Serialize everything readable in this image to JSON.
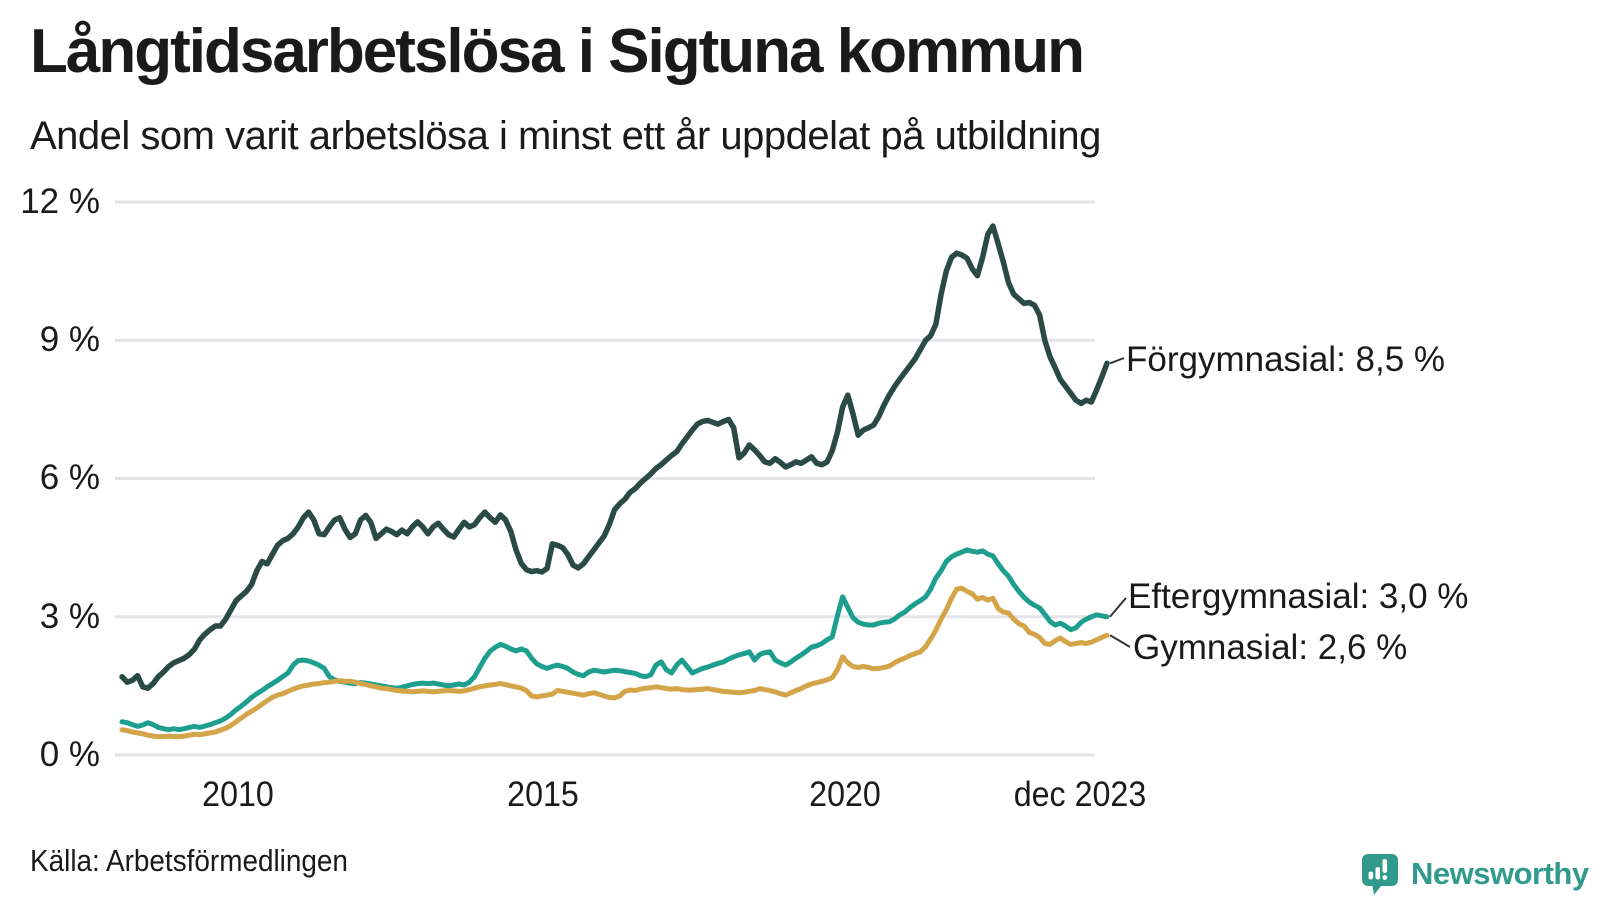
{
  "header": {
    "title": "Långtidsarbetslösa i Sigtuna kommun",
    "subtitle": "Andel som varit arbetslösa i minst ett år uppdelat på utbildning"
  },
  "footer": {
    "source": "Källa: Arbetsförmedlingen",
    "brand_name": "Newsworthy",
    "brand_color": "#319a8c",
    "brand_icon": "bar-chart-speech-bubble-icon"
  },
  "chart_data": {
    "type": "line",
    "title": "Långtidsarbetslösa i Sigtuna kommun",
    "subtitle": "Andel som varit arbetslösa i minst ett år uppdelat på utbildning",
    "unit": "%",
    "x_start": "2008",
    "x_end": "dec 2023",
    "points_per_year": 12,
    "ylim": [
      0,
      12
    ],
    "grid": "horizontal",
    "legend_position": "end-of-line-labels",
    "colors": {
      "grid": "#e4e4e8",
      "text": "#1a1a1a",
      "connector": "#333333"
    },
    "y_axis": {
      "ticks_top_to_bottom": [
        "12 %",
        "9 %",
        "6 %",
        "3 %",
        "0 %"
      ],
      "tick_values": [
        12,
        9,
        6,
        3,
        0
      ]
    },
    "x_axis": {
      "ticks": [
        {
          "label": "2010",
          "pos": 0.1178
        },
        {
          "label": "2015",
          "pos": 0.4274
        },
        {
          "label": "2020",
          "pos": 0.734
        },
        {
          "label": "dec 2023",
          "pos": 0.9726
        }
      ]
    },
    "series": [
      {
        "name": "Förgymnasial",
        "color": "#2a4b45",
        "end_value_label": "8,5 %",
        "end_label": "Förgymnasial: 8,5 %",
        "values": [
          1.7,
          1.58,
          1.62,
          1.72,
          1.48,
          1.45,
          1.55,
          1.7,
          1.8,
          1.92,
          2.0,
          2.05,
          2.1,
          2.18,
          2.3,
          2.5,
          2.62,
          2.72,
          2.8,
          2.8,
          2.95,
          3.15,
          3.35,
          3.45,
          3.55,
          3.7,
          4.0,
          4.2,
          4.15,
          4.35,
          4.55,
          4.65,
          4.7,
          4.8,
          4.95,
          5.15,
          5.27,
          5.1,
          4.8,
          4.78,
          4.95,
          5.1,
          5.15,
          4.9,
          4.72,
          4.8,
          5.1,
          5.2,
          5.05,
          4.7,
          4.8,
          4.9,
          4.85,
          4.78,
          4.88,
          4.8,
          4.95,
          5.06,
          4.95,
          4.8,
          4.95,
          5.03,
          4.9,
          4.78,
          4.73,
          4.9,
          5.05,
          4.95,
          5.0,
          5.15,
          5.27,
          5.15,
          5.05,
          5.21,
          5.1,
          4.85,
          4.45,
          4.16,
          4.02,
          3.98,
          4.0,
          3.97,
          4.05,
          4.58,
          4.55,
          4.5,
          4.35,
          4.12,
          4.06,
          4.15,
          4.3,
          4.45,
          4.6,
          4.75,
          5.0,
          5.32,
          5.45,
          5.55,
          5.7,
          5.78,
          5.9,
          6.0,
          6.1,
          6.22,
          6.3,
          6.4,
          6.5,
          6.58,
          6.75,
          6.9,
          7.05,
          7.18,
          7.24,
          7.26,
          7.22,
          7.18,
          7.24,
          7.28,
          7.1,
          6.45,
          6.55,
          6.73,
          6.62,
          6.5,
          6.36,
          6.33,
          6.43,
          6.35,
          6.25,
          6.3,
          6.36,
          6.33,
          6.4,
          6.47,
          6.33,
          6.3,
          6.36,
          6.6,
          7.0,
          7.55,
          7.81,
          7.4,
          6.94,
          7.05,
          7.1,
          7.16,
          7.35,
          7.6,
          7.81,
          7.99,
          8.15,
          8.3,
          8.45,
          8.6,
          8.8,
          9.0,
          9.1,
          9.35,
          10.0,
          10.5,
          10.8,
          10.89,
          10.85,
          10.78,
          10.55,
          10.4,
          10.8,
          11.3,
          11.48,
          11.1,
          10.7,
          10.25,
          10.0,
          9.9,
          9.8,
          9.82,
          9.76,
          9.55,
          9.0,
          8.64,
          8.4,
          8.15,
          8.0,
          7.85,
          7.7,
          7.63,
          7.7,
          7.66,
          7.92,
          8.2,
          8.5
        ]
      },
      {
        "name": "Eftergymnasial",
        "color": "#1d9e8f",
        "end_value_label": "3,0 %",
        "end_label": "Eftergymnasial: 3,0 %",
        "values": [
          0.72,
          0.7,
          0.66,
          0.62,
          0.65,
          0.7,
          0.66,
          0.6,
          0.57,
          0.55,
          0.57,
          0.55,
          0.57,
          0.6,
          0.62,
          0.6,
          0.63,
          0.66,
          0.7,
          0.74,
          0.8,
          0.88,
          0.98,
          1.06,
          1.15,
          1.25,
          1.33,
          1.4,
          1.48,
          1.55,
          1.62,
          1.7,
          1.78,
          1.95,
          2.05,
          2.06,
          2.04,
          2.0,
          1.95,
          1.88,
          1.7,
          1.63,
          1.6,
          1.58,
          1.56,
          1.55,
          1.57,
          1.56,
          1.54,
          1.52,
          1.5,
          1.48,
          1.46,
          1.45,
          1.47,
          1.5,
          1.53,
          1.55,
          1.56,
          1.55,
          1.56,
          1.54,
          1.52,
          1.5,
          1.52,
          1.54,
          1.52,
          1.58,
          1.7,
          1.9,
          2.1,
          2.25,
          2.34,
          2.4,
          2.36,
          2.3,
          2.26,
          2.3,
          2.26,
          2.1,
          1.98,
          1.92,
          1.88,
          1.92,
          1.95,
          1.92,
          1.88,
          1.8,
          1.75,
          1.72,
          1.8,
          1.84,
          1.82,
          1.8,
          1.82,
          1.84,
          1.83,
          1.81,
          1.79,
          1.77,
          1.72,
          1.7,
          1.74,
          1.95,
          2.02,
          1.85,
          1.78,
          1.95,
          2.06,
          1.92,
          1.78,
          1.83,
          1.88,
          1.91,
          1.95,
          1.99,
          2.02,
          2.08,
          2.13,
          2.17,
          2.2,
          2.24,
          2.06,
          2.18,
          2.22,
          2.24,
          2.06,
          2.0,
          1.95,
          2.02,
          2.1,
          2.17,
          2.25,
          2.34,
          2.37,
          2.42,
          2.5,
          2.56,
          3.02,
          3.43,
          3.2,
          2.98,
          2.88,
          2.84,
          2.82,
          2.82,
          2.86,
          2.88,
          2.89,
          2.95,
          3.04,
          3.1,
          3.2,
          3.28,
          3.35,
          3.43,
          3.6,
          3.84,
          4.0,
          4.2,
          4.3,
          4.36,
          4.4,
          4.45,
          4.42,
          4.4,
          4.43,
          4.36,
          4.32,
          4.15,
          4.0,
          3.88,
          3.7,
          3.55,
          3.42,
          3.32,
          3.25,
          3.19,
          3.05,
          2.9,
          2.82,
          2.86,
          2.8,
          2.72,
          2.76,
          2.88,
          2.95,
          3.0,
          3.04,
          3.02,
          3.0
        ]
      },
      {
        "name": "Gymnasial",
        "color": "#d4a448",
        "end_value_label": "2,6 %",
        "end_label": "Gymnasial: 2,6 %",
        "values": [
          0.55,
          0.53,
          0.5,
          0.48,
          0.46,
          0.43,
          0.41,
          0.4,
          0.4,
          0.41,
          0.4,
          0.4,
          0.41,
          0.43,
          0.45,
          0.44,
          0.46,
          0.48,
          0.5,
          0.54,
          0.58,
          0.64,
          0.72,
          0.8,
          0.88,
          0.95,
          1.02,
          1.1,
          1.18,
          1.25,
          1.3,
          1.33,
          1.38,
          1.43,
          1.47,
          1.5,
          1.52,
          1.54,
          1.55,
          1.57,
          1.58,
          1.6,
          1.61,
          1.6,
          1.6,
          1.58,
          1.55,
          1.53,
          1.5,
          1.48,
          1.45,
          1.44,
          1.42,
          1.4,
          1.39,
          1.38,
          1.37,
          1.38,
          1.39,
          1.38,
          1.37,
          1.38,
          1.39,
          1.4,
          1.39,
          1.38,
          1.39,
          1.42,
          1.45,
          1.48,
          1.5,
          1.52,
          1.53,
          1.55,
          1.53,
          1.5,
          1.48,
          1.45,
          1.4,
          1.28,
          1.26,
          1.28,
          1.3,
          1.32,
          1.4,
          1.38,
          1.36,
          1.34,
          1.32,
          1.3,
          1.33,
          1.35,
          1.32,
          1.28,
          1.25,
          1.24,
          1.28,
          1.38,
          1.41,
          1.4,
          1.43,
          1.45,
          1.46,
          1.48,
          1.46,
          1.44,
          1.43,
          1.44,
          1.42,
          1.41,
          1.41,
          1.42,
          1.43,
          1.44,
          1.42,
          1.4,
          1.38,
          1.37,
          1.36,
          1.35,
          1.36,
          1.38,
          1.4,
          1.44,
          1.42,
          1.4,
          1.37,
          1.33,
          1.3,
          1.35,
          1.4,
          1.44,
          1.5,
          1.54,
          1.57,
          1.6,
          1.63,
          1.68,
          1.85,
          2.13,
          2.0,
          1.92,
          1.9,
          1.92,
          1.9,
          1.87,
          1.88,
          1.9,
          1.93,
          2.0,
          2.06,
          2.1,
          2.16,
          2.2,
          2.24,
          2.35,
          2.52,
          2.71,
          2.95,
          3.15,
          3.4,
          3.6,
          3.62,
          3.55,
          3.5,
          3.38,
          3.42,
          3.36,
          3.4,
          3.18,
          3.1,
          3.08,
          2.95,
          2.85,
          2.8,
          2.66,
          2.62,
          2.55,
          2.42,
          2.4,
          2.48,
          2.54,
          2.46,
          2.4,
          2.42,
          2.44,
          2.42,
          2.45,
          2.5,
          2.55,
          2.6
        ]
      }
    ]
  }
}
